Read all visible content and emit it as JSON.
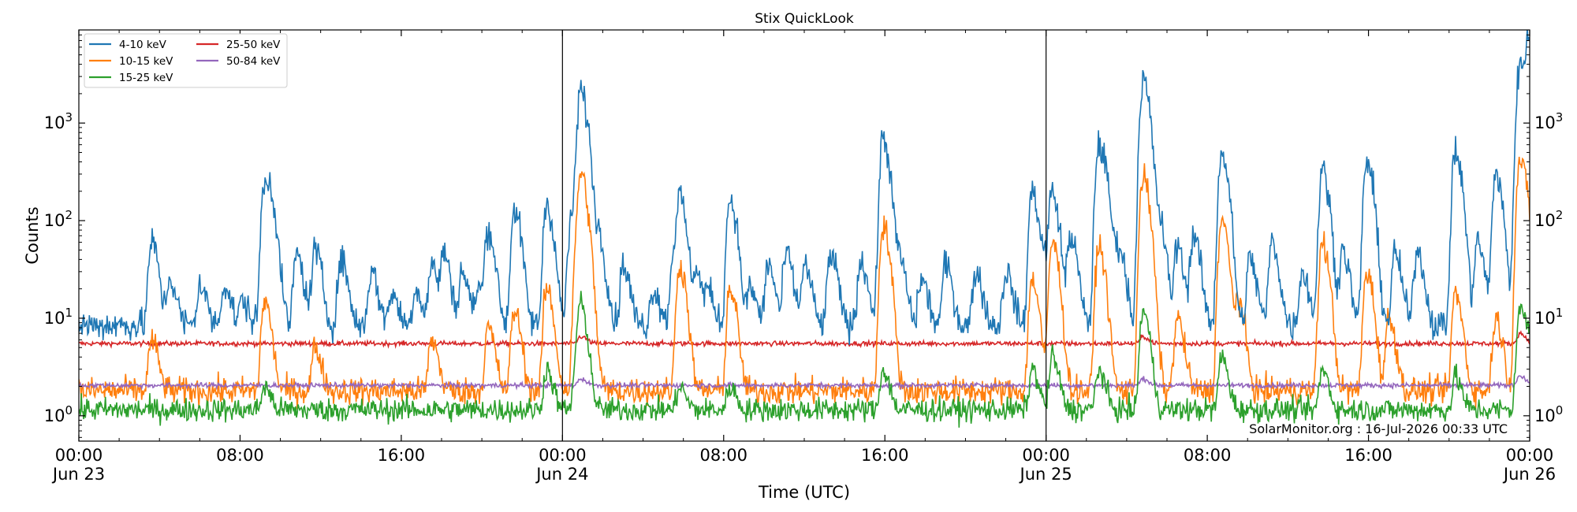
{
  "chart_data": {
    "type": "line",
    "title": "Stix QuickLook",
    "xlabel": "Time (UTC)",
    "ylabel": "Counts",
    "yscale": "log",
    "ylim": [
      0.55,
      9000
    ],
    "xlim_hours": [
      0,
      72
    ],
    "grid": false,
    "legend_placement": "top-left",
    "credit": "SolarMonitor.org : 16-Jul-2026 00:33 UTC",
    "x_ticks": [
      {
        "hour": 0,
        "lines": [
          "00:00",
          "Jun 23"
        ]
      },
      {
        "hour": 8,
        "lines": [
          "08:00"
        ]
      },
      {
        "hour": 16,
        "lines": [
          "16:00"
        ]
      },
      {
        "hour": 24,
        "lines": [
          "00:00",
          "Jun 24"
        ]
      },
      {
        "hour": 32,
        "lines": [
          "08:00"
        ]
      },
      {
        "hour": 40,
        "lines": [
          "16:00"
        ]
      },
      {
        "hour": 48,
        "lines": [
          "00:00",
          "Jun 25"
        ]
      },
      {
        "hour": 56,
        "lines": [
          "08:00"
        ]
      },
      {
        "hour": 64,
        "lines": [
          "16:00"
        ]
      },
      {
        "hour": 72,
        "lines": [
          "00:00",
          "Jun 26"
        ]
      }
    ],
    "y_ticks": [
      {
        "value": 1,
        "base": "10",
        "exp": "0"
      },
      {
        "value": 10,
        "base": "10",
        "exp": "1"
      },
      {
        "value": 100,
        "base": "10",
        "exp": "2"
      },
      {
        "value": 1000,
        "base": "10",
        "exp": "3"
      }
    ],
    "day_boundaries_hours": [
      24,
      48
    ],
    "series": [
      {
        "name": "4-10 keV",
        "color": "#1f77b4",
        "baseline": 8.5,
        "noise": 0.08,
        "peaks": [
          [
            3.6,
            60
          ],
          [
            4.5,
            25
          ],
          [
            6,
            22
          ],
          [
            7.2,
            22
          ],
          [
            8.1,
            15
          ],
          [
            9.2,
            230
          ],
          [
            9.5,
            120
          ],
          [
            10.8,
            45
          ],
          [
            11.7,
            50
          ],
          [
            13,
            40
          ],
          [
            14.5,
            30
          ],
          [
            15.5,
            18
          ],
          [
            16.7,
            20
          ],
          [
            17.5,
            35
          ],
          [
            18.1,
            45
          ],
          [
            19,
            30
          ],
          [
            19.8,
            20
          ],
          [
            20.3,
            80
          ],
          [
            21.6,
            130
          ],
          [
            23.2,
            150
          ],
          [
            24.4,
            80
          ],
          [
            24.7,
            180
          ],
          [
            24.9,
            2000
          ],
          [
            25.3,
            80
          ],
          [
            25.8,
            60
          ],
          [
            27,
            35
          ],
          [
            28.5,
            20
          ],
          [
            29.5,
            45
          ],
          [
            29.8,
            160
          ],
          [
            30.6,
            30
          ],
          [
            31.2,
            18
          ],
          [
            32.3,
            170
          ],
          [
            33.3,
            20
          ],
          [
            34.2,
            35
          ],
          [
            35.1,
            45
          ],
          [
            36,
            35
          ],
          [
            37.3,
            45
          ],
          [
            38.8,
            40
          ],
          [
            39.9,
            700
          ],
          [
            40.7,
            40
          ],
          [
            41.8,
            25
          ],
          [
            43,
            35
          ],
          [
            44.5,
            30
          ],
          [
            46,
            30
          ],
          [
            47.3,
            200
          ],
          [
            48,
            40
          ],
          [
            48.3,
            180
          ],
          [
            49.2,
            70
          ],
          [
            50.6,
            600
          ],
          [
            51,
            100
          ],
          [
            51.6,
            50
          ],
          [
            52.8,
            2700
          ],
          [
            53.6,
            90
          ],
          [
            54.5,
            55
          ],
          [
            55.3,
            70
          ],
          [
            56.7,
            500
          ],
          [
            58.1,
            40
          ],
          [
            59.2,
            60
          ],
          [
            60.7,
            30
          ],
          [
            61.7,
            330
          ],
          [
            62.7,
            50
          ],
          [
            63.9,
            400
          ],
          [
            65.3,
            45
          ],
          [
            66.4,
            50
          ],
          [
            68.3,
            500
          ],
          [
            69.4,
            60
          ],
          [
            70.3,
            300
          ],
          [
            71.3,
            80
          ],
          [
            71.5,
            3600
          ],
          [
            71.9,
            6000
          ]
        ]
      },
      {
        "name": "10-15 keV",
        "color": "#ff7f0e",
        "baseline": 1.8,
        "noise": 0.07,
        "peaks": [
          [
            3.6,
            6
          ],
          [
            9.2,
            15
          ],
          [
            11.7,
            5
          ],
          [
            17.5,
            6
          ],
          [
            20.3,
            8
          ],
          [
            21.6,
            12
          ],
          [
            23.2,
            20
          ],
          [
            24.7,
            40
          ],
          [
            24.9,
            280
          ],
          [
            25.3,
            8
          ],
          [
            29.8,
            35
          ],
          [
            32.3,
            20
          ],
          [
            39.9,
            90
          ],
          [
            47.3,
            25
          ],
          [
            48.3,
            60
          ],
          [
            50.6,
            55
          ],
          [
            52.8,
            280
          ],
          [
            54.5,
            10
          ],
          [
            56.7,
            100
          ],
          [
            57.5,
            15
          ],
          [
            61.7,
            60
          ],
          [
            63.9,
            30
          ],
          [
            65,
            10
          ],
          [
            68.3,
            18
          ],
          [
            70.3,
            10
          ],
          [
            71.5,
            400
          ],
          [
            71.9,
            50
          ]
        ]
      },
      {
        "name": "15-25 keV",
        "color": "#2ca02c",
        "baseline": 1.15,
        "noise": 0.06,
        "peaks": [
          [
            9.2,
            2
          ],
          [
            23.2,
            3
          ],
          [
            24.7,
            4
          ],
          [
            24.9,
            12
          ],
          [
            29.8,
            2
          ],
          [
            32.3,
            2
          ],
          [
            39.9,
            3
          ],
          [
            47.3,
            3
          ],
          [
            48.3,
            4
          ],
          [
            50.6,
            3
          ],
          [
            52.8,
            12
          ],
          [
            56.7,
            4
          ],
          [
            61.7,
            3
          ],
          [
            68.3,
            2.5
          ],
          [
            71.5,
            12
          ],
          [
            71.9,
            5
          ]
        ]
      },
      {
        "name": "25-50 keV",
        "color": "#d62728",
        "baseline": 5.5,
        "noise": 0.012,
        "peaks": [
          [
            24.9,
            6.5
          ],
          [
            52.8,
            6.5
          ],
          [
            71.5,
            7
          ]
        ]
      },
      {
        "name": "50-84 keV",
        "color": "#9467bd",
        "baseline": 2.05,
        "noise": 0.012,
        "peaks": [
          [
            24.9,
            2.4
          ],
          [
            52.8,
            2.4
          ],
          [
            71.5,
            2.6
          ]
        ]
      }
    ]
  }
}
